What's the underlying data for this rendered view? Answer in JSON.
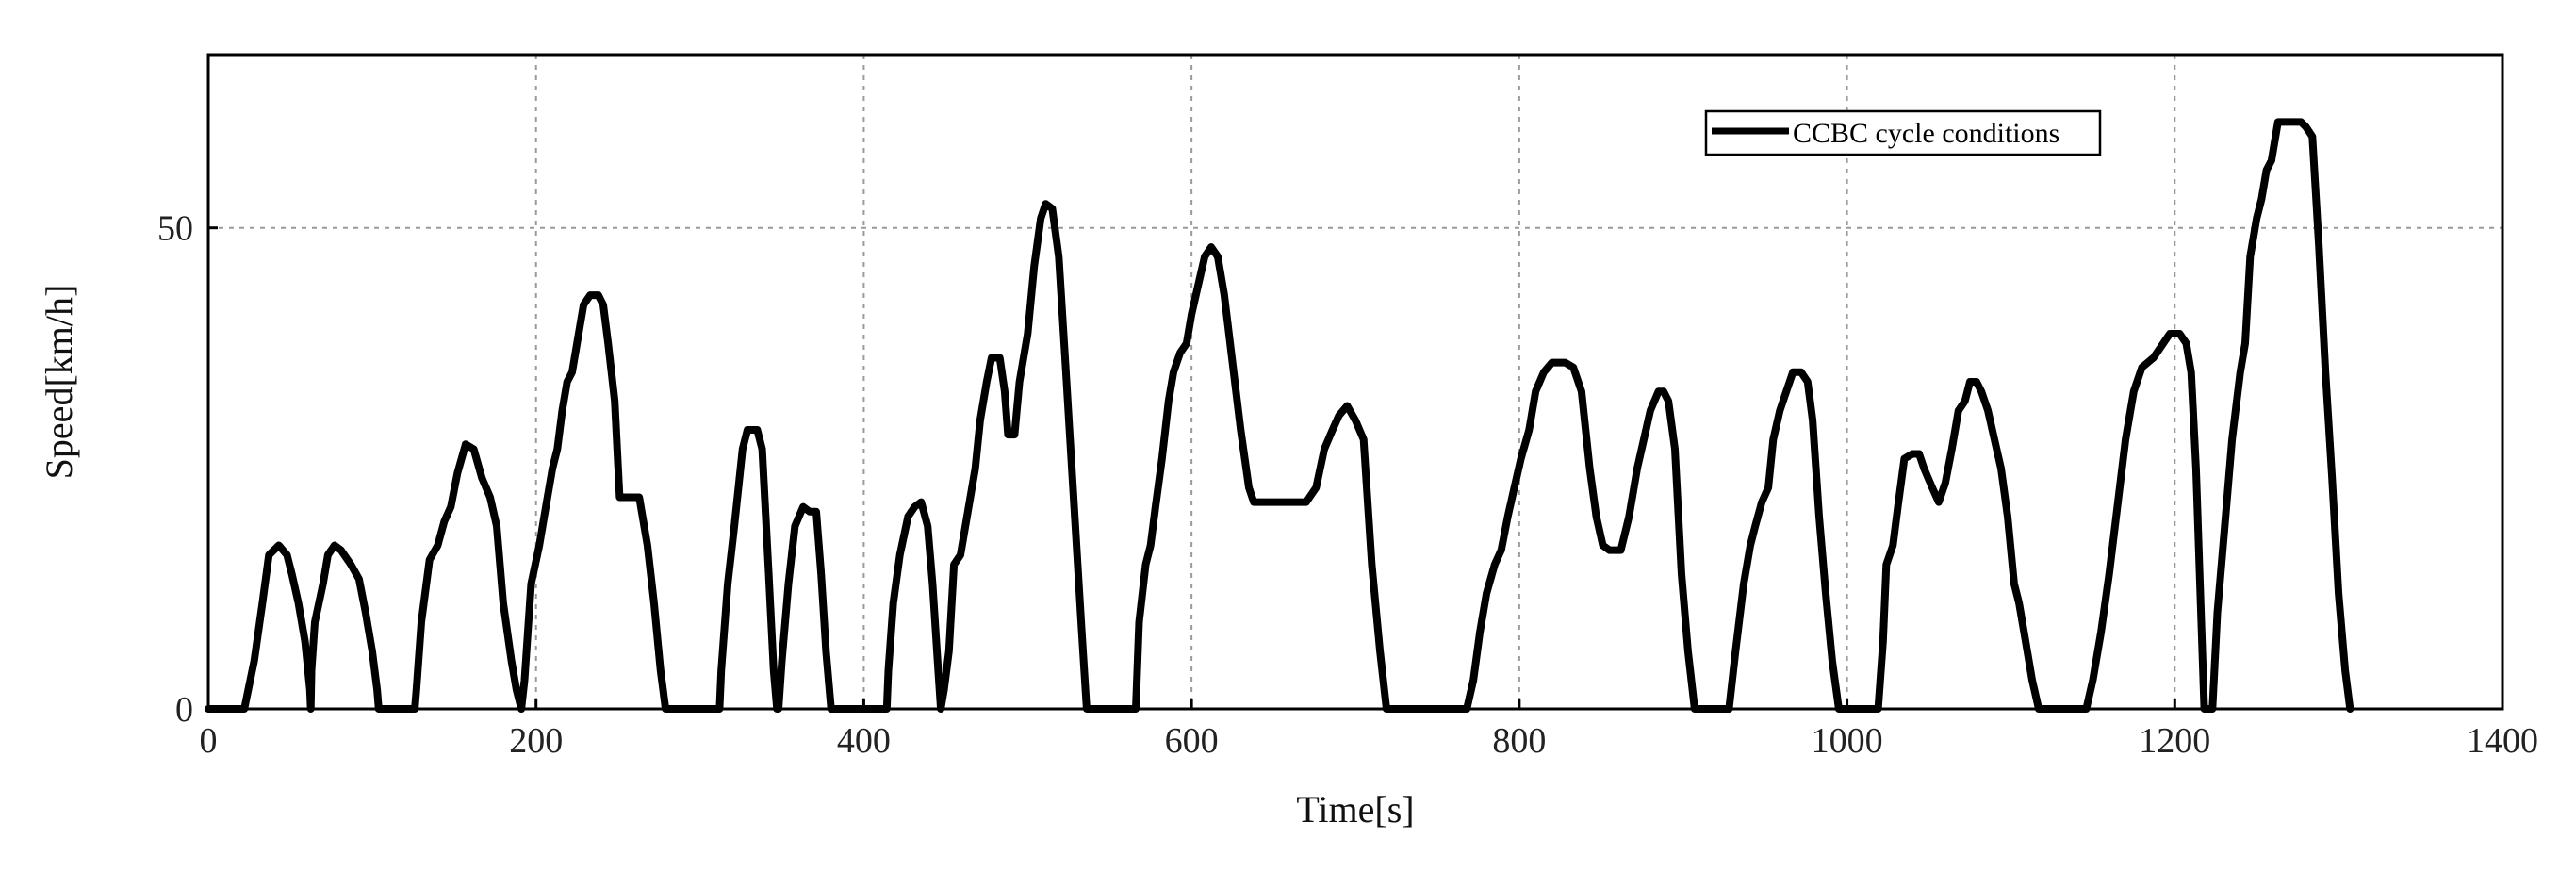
{
  "chart_data": {
    "type": "line",
    "title": "",
    "xlabel": "Time[s]",
    "ylabel": "Speed[km/h]",
    "xlim": [
      0,
      1400
    ],
    "ylim": [
      0,
      68
    ],
    "x_ticks": [
      0,
      200,
      400,
      600,
      800,
      1000,
      1200,
      1400
    ],
    "y_ticks": [
      0,
      50
    ],
    "grid": true,
    "legend_position": "top-right",
    "series": [
      {
        "name": "CCBC cycle conditions",
        "color": "#000000",
        "points": [
          [
            0,
            0
          ],
          [
            22,
            0
          ],
          [
            28,
            5
          ],
          [
            33,
            11
          ],
          [
            37,
            16
          ],
          [
            43,
            17
          ],
          [
            48,
            16
          ],
          [
            51,
            14
          ],
          [
            55,
            11
          ],
          [
            59,
            7
          ],
          [
            62,
            2
          ],
          [
            62.5,
            0
          ],
          [
            63,
            4
          ],
          [
            65,
            9
          ],
          [
            70,
            13
          ],
          [
            73,
            16
          ],
          [
            77,
            17
          ],
          [
            81,
            16.5
          ],
          [
            87,
            15
          ],
          [
            92,
            13.5
          ],
          [
            96,
            10
          ],
          [
            100,
            6
          ],
          [
            103,
            2
          ],
          [
            104,
            0
          ],
          [
            126,
            0
          ],
          [
            127,
            2
          ],
          [
            130,
            9
          ],
          [
            135,
            15.5
          ],
          [
            140,
            17
          ],
          [
            144,
            19.5
          ],
          [
            148,
            21
          ],
          [
            152,
            24.5
          ],
          [
            157,
            27.5
          ],
          [
            162,
            27
          ],
          [
            167,
            24
          ],
          [
            172,
            22
          ],
          [
            176,
            19
          ],
          [
            180,
            11
          ],
          [
            185,
            5
          ],
          [
            188,
            2
          ],
          [
            191,
            0
          ],
          [
            193,
            3
          ],
          [
            197,
            13
          ],
          [
            202,
            17
          ],
          [
            206,
            21
          ],
          [
            210,
            25
          ],
          [
            213,
            27
          ],
          [
            216,
            31
          ],
          [
            219,
            34
          ],
          [
            222,
            35
          ],
          [
            225,
            38
          ],
          [
            229,
            42
          ],
          [
            233,
            43
          ],
          [
            238,
            43
          ],
          [
            241,
            42
          ],
          [
            244,
            38
          ],
          [
            248,
            32
          ],
          [
            251,
            22
          ],
          [
            258,
            22
          ],
          [
            263,
            22
          ],
          [
            268,
            17
          ],
          [
            272,
            11
          ],
          [
            276,
            4
          ],
          [
            279,
            0
          ],
          [
            312,
            0
          ],
          [
            313,
            4
          ],
          [
            317,
            13
          ],
          [
            321,
            19
          ],
          [
            326,
            27
          ],
          [
            329,
            29
          ],
          [
            335,
            29
          ],
          [
            338,
            27
          ],
          [
            342,
            14
          ],
          [
            345,
            4
          ],
          [
            347,
            0
          ],
          [
            348,
            0
          ],
          [
            350,
            5
          ],
          [
            354,
            13
          ],
          [
            358,
            19
          ],
          [
            363,
            21
          ],
          [
            367,
            20.5
          ],
          [
            371,
            20.5
          ],
          [
            374,
            14
          ],
          [
            377,
            6
          ],
          [
            380,
            0
          ],
          [
            414,
            0
          ],
          [
            415,
            4
          ],
          [
            418,
            11
          ],
          [
            422,
            16
          ],
          [
            427,
            20
          ],
          [
            431,
            21
          ],
          [
            435,
            21.5
          ],
          [
            439,
            19
          ],
          [
            442,
            13
          ],
          [
            445,
            5
          ],
          [
            447,
            0
          ],
          [
            449,
            2
          ],
          [
            452,
            6
          ],
          [
            455,
            15
          ],
          [
            459,
            16
          ],
          [
            464,
            21
          ],
          [
            468,
            25
          ],
          [
            471,
            30
          ],
          [
            475,
            34
          ],
          [
            478,
            36.5
          ],
          [
            483,
            36.5
          ],
          [
            486,
            33
          ],
          [
            488,
            28.5
          ],
          [
            492,
            28.5
          ],
          [
            495,
            34
          ],
          [
            500,
            39
          ],
          [
            504,
            46
          ],
          [
            508,
            51
          ],
          [
            511,
            52.5
          ],
          [
            515,
            52
          ],
          [
            519,
            47
          ],
          [
            523,
            36
          ],
          [
            528,
            22
          ],
          [
            533,
            8
          ],
          [
            536,
            0
          ],
          [
            566,
            0
          ],
          [
            568,
            9
          ],
          [
            572,
            15
          ],
          [
            575,
            17
          ],
          [
            578,
            21
          ],
          [
            582,
            26
          ],
          [
            586,
            32
          ],
          [
            589,
            35
          ],
          [
            593,
            37
          ],
          [
            597,
            38
          ],
          [
            600,
            41
          ],
          [
            604,
            44
          ],
          [
            608,
            47
          ],
          [
            612,
            48
          ],
          [
            616,
            47
          ],
          [
            620,
            43
          ],
          [
            625,
            36
          ],
          [
            630,
            29
          ],
          [
            635,
            23
          ],
          [
            638,
            21.5
          ],
          [
            650,
            21.5
          ],
          [
            660,
            21.5
          ],
          [
            670,
            21.5
          ],
          [
            676,
            23
          ],
          [
            681,
            27
          ],
          [
            686,
            29
          ],
          [
            690,
            30.5
          ],
          [
            695,
            31.5
          ],
          [
            700,
            30
          ],
          [
            705,
            28
          ],
          [
            710,
            15
          ],
          [
            715,
            6
          ],
          [
            719,
            0
          ],
          [
            768,
            0
          ],
          [
            772,
            3
          ],
          [
            776,
            8
          ],
          [
            780,
            12
          ],
          [
            785,
            15
          ],
          [
            789,
            16.5
          ],
          [
            793,
            20
          ],
          [
            797,
            23
          ],
          [
            801,
            26
          ],
          [
            806,
            29
          ],
          [
            810,
            33
          ],
          [
            815,
            35
          ],
          [
            820,
            36
          ],
          [
            828,
            36
          ],
          [
            833,
            35.5
          ],
          [
            838,
            33
          ],
          [
            843,
            25
          ],
          [
            847,
            20
          ],
          [
            851,
            17
          ],
          [
            855,
            16.5
          ],
          [
            862,
            16.5
          ],
          [
            867,
            20
          ],
          [
            872,
            25
          ],
          [
            876,
            28
          ],
          [
            880,
            31
          ],
          [
            885,
            33
          ],
          [
            888,
            33
          ],
          [
            891,
            32
          ],
          [
            895,
            27
          ],
          [
            899,
            14
          ],
          [
            903,
            6
          ],
          [
            907,
            0
          ],
          [
            928,
            0
          ],
          [
            932,
            6
          ],
          [
            937,
            13
          ],
          [
            941,
            17
          ],
          [
            944,
            19
          ],
          [
            948,
            21.5
          ],
          [
            952,
            23
          ],
          [
            955,
            28
          ],
          [
            959,
            31
          ],
          [
            963,
            33
          ],
          [
            967,
            35
          ],
          [
            972,
            35
          ],
          [
            976,
            34
          ],
          [
            979,
            30
          ],
          [
            983,
            20
          ],
          [
            987,
            12
          ],
          [
            991,
            5
          ],
          [
            995,
            0
          ],
          [
            1019,
            0
          ],
          [
            1022,
            7
          ],
          [
            1024,
            15
          ],
          [
            1028,
            17
          ],
          [
            1031,
            21
          ],
          [
            1035,
            26
          ],
          [
            1040,
            26.5
          ],
          [
            1044,
            26.5
          ],
          [
            1047,
            25
          ],
          [
            1052,
            23
          ],
          [
            1056,
            21.5
          ],
          [
            1060,
            23.5
          ],
          [
            1064,
            27
          ],
          [
            1068,
            31
          ],
          [
            1072,
            32
          ],
          [
            1075,
            34
          ],
          [
            1079,
            34
          ],
          [
            1082,
            33
          ],
          [
            1086,
            31
          ],
          [
            1090,
            28
          ],
          [
            1094,
            25
          ],
          [
            1098,
            20
          ],
          [
            1102,
            13
          ],
          [
            1105,
            11
          ],
          [
            1109,
            7
          ],
          [
            1113,
            3
          ],
          [
            1117,
            0
          ],
          [
            1146,
            0
          ],
          [
            1150,
            3
          ],
          [
            1155,
            8
          ],
          [
            1160,
            14
          ],
          [
            1165,
            21
          ],
          [
            1170,
            28
          ],
          [
            1175,
            33
          ],
          [
            1180,
            35.5
          ],
          [
            1187,
            36.5
          ],
          [
            1193,
            38
          ],
          [
            1197,
            39
          ],
          [
            1203,
            39
          ],
          [
            1207,
            38
          ],
          [
            1210,
            35
          ],
          [
            1213,
            25
          ],
          [
            1216,
            10
          ],
          [
            1218,
            0
          ],
          [
            1219,
            0
          ],
          [
            1221,
            0
          ],
          [
            1223,
            0
          ],
          [
            1226,
            10
          ],
          [
            1231,
            20
          ],
          [
            1235,
            28
          ],
          [
            1240,
            35
          ],
          [
            1243,
            38
          ],
          [
            1246,
            47
          ],
          [
            1250,
            51
          ],
          [
            1253,
            53
          ],
          [
            1256,
            56
          ],
          [
            1259,
            57
          ],
          [
            1263,
            61
          ],
          [
            1270,
            61
          ],
          [
            1277,
            61
          ],
          [
            1280,
            60.5
          ],
          [
            1284,
            59.5
          ],
          [
            1288,
            48
          ],
          [
            1292,
            35
          ],
          [
            1296,
            24
          ],
          [
            1300,
            12
          ],
          [
            1304,
            4
          ],
          [
            1307,
            0
          ]
        ]
      }
    ]
  }
}
